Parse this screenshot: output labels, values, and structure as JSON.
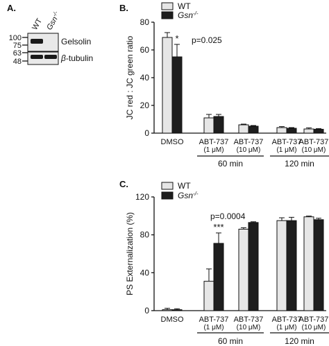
{
  "panels": {
    "a_label": "A.",
    "b_label": "B.",
    "c_label": "C."
  },
  "blot": {
    "lanes": [
      "WT",
      "Gsn-/-"
    ],
    "lane_ko_base": "Gsn",
    "lane_ko_sup": "-/-",
    "markers": [
      "100",
      "75",
      "63",
      "48"
    ],
    "bands": [
      "Gelsolin",
      "β-tubulin"
    ],
    "beta": "β",
    "tubulin_rest": "-tubulin",
    "band_color": "#1a1a1a",
    "bg_color": "#e9e9e9"
  },
  "legend": {
    "wt": "WT",
    "ko_base": "Gsn",
    "ko_sup": "-/-"
  },
  "chart_data": [
    {
      "type": "bar",
      "ylabel": "JC red : JC green ratio",
      "ylim": [
        0,
        80
      ],
      "yticks": [
        "0",
        "20",
        "40",
        "60",
        "80"
      ],
      "categories": [
        "DMSO",
        "ABT-737 (1 μM)",
        "ABT-737 (10 μM)",
        "ABT-737 (1 μM)",
        "ABT-737 (10 μM)"
      ],
      "category_lines": [
        [
          "DMSO"
        ],
        [
          "ABT-737",
          "(1 μM)"
        ],
        [
          "ABT-737",
          "(10 μM)"
        ],
        [
          "ABT-737",
          "(1 μM)"
        ],
        [
          "ABT-737",
          "(10 μM)"
        ]
      ],
      "groups": [
        {
          "label": "60 min",
          "range": [
            1,
            2
          ]
        },
        {
          "label": "120 min",
          "range": [
            3,
            4
          ]
        }
      ],
      "series": [
        {
          "name": "WT",
          "values": [
            69,
            11,
            6,
            4,
            3
          ],
          "errors": [
            3.5,
            2.5,
            0.5,
            0.7,
            0.8
          ],
          "color": "#e6e6e6"
        },
        {
          "name": "Gsn-/-",
          "values": [
            55,
            12,
            5,
            3.5,
            2.8
          ],
          "errors": [
            9,
            1.5,
            0.5,
            0.5,
            0.5
          ],
          "color": "#1e1e1e"
        }
      ],
      "annotations": [
        {
          "text": "*",
          "category": 0
        },
        {
          "text": "p=0.025",
          "category": 0
        }
      ],
      "legend_position": "top"
    },
    {
      "type": "bar",
      "ylabel": "PS Externalization (%)",
      "ylim": [
        0,
        120
      ],
      "yticks": [
        "0",
        "40",
        "80",
        "120"
      ],
      "categories": [
        "DMSO",
        "ABT-737 (1 μM)",
        "ABT-737 (10 μM)",
        "ABT-737 (1 μM)",
        "ABT-737 (10 μM)"
      ],
      "category_lines": [
        [
          "DMSO"
        ],
        [
          "ABT-737",
          "(1 μM)"
        ],
        [
          "ABT-737",
          "(10 μM)"
        ],
        [
          "ABT-737",
          "(1 μM)"
        ],
        [
          "ABT-737",
          "(10 μM)"
        ]
      ],
      "groups": [
        {
          "label": "60 min",
          "range": [
            1,
            2
          ]
        },
        {
          "label": "120 min",
          "range": [
            3,
            4
          ]
        }
      ],
      "series": [
        {
          "name": "WT",
          "values": [
            1,
            31,
            86,
            95,
            99
          ],
          "errors": [
            1.5,
            13,
            1.5,
            3,
            0.8
          ],
          "color": "#e6e6e6"
        },
        {
          "name": "Gsn-/-",
          "values": [
            1,
            71,
            93,
            95,
            96
          ],
          "errors": [
            1,
            11,
            0.8,
            3.5,
            1.5
          ],
          "color": "#1e1e1e"
        }
      ],
      "annotations": [
        {
          "text": "***",
          "category": 1
        },
        {
          "text": "p=0.0004",
          "category": 1
        }
      ],
      "legend_position": "top-left"
    }
  ]
}
